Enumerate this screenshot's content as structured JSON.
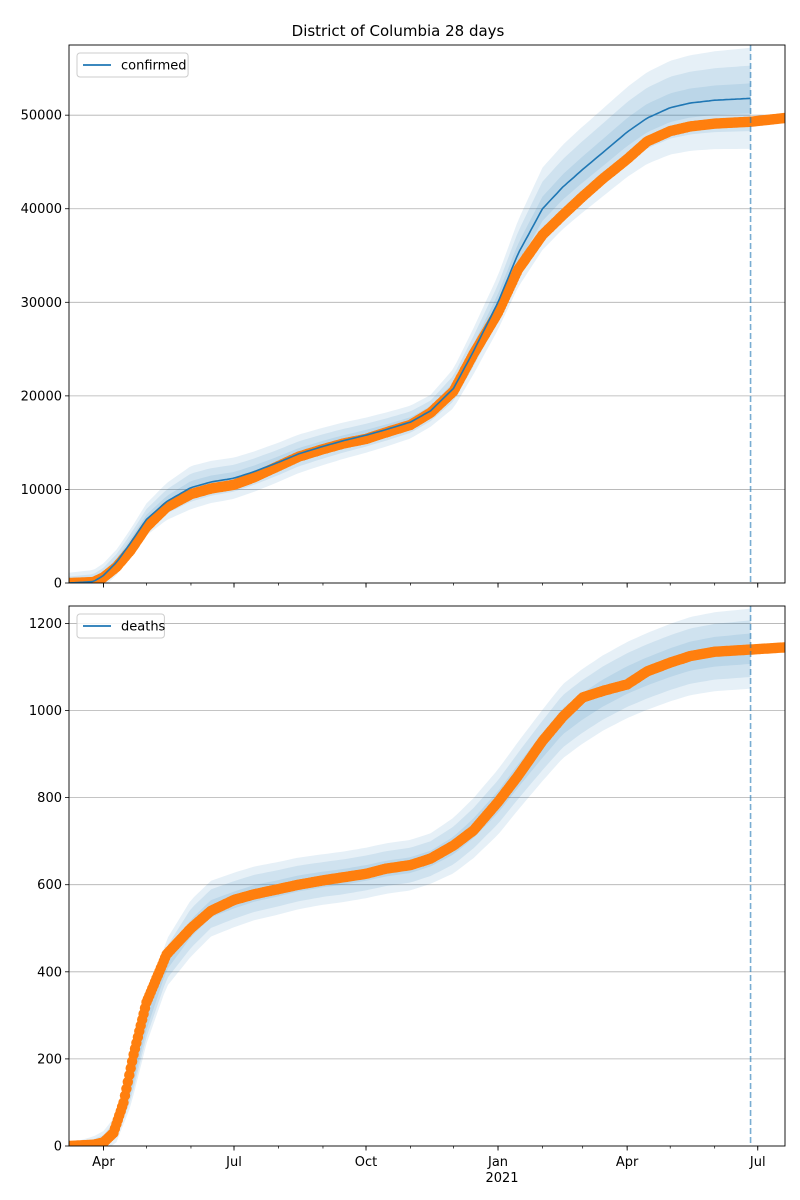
{
  "figure": {
    "title": "District of Columbia 28 days",
    "x_year_label": "2021"
  },
  "chart_data": [
    {
      "type": "line",
      "title": "District of Columbia 28 days",
      "xlabel": "",
      "ylabel": "",
      "x_axis": {
        "type": "date",
        "range": [
          "2020-03-08",
          "2021-07-20"
        ],
        "major_ticks": [
          {
            "date": "2020-04-01",
            "label": "Apr"
          },
          {
            "date": "2020-07-01",
            "label": "Jul"
          },
          {
            "date": "2020-10-01",
            "label": "Oct"
          },
          {
            "date": "2021-01-01",
            "label": "Jan"
          },
          {
            "date": "2021-04-01",
            "label": "Apr"
          },
          {
            "date": "2021-07-01",
            "label": "Jul"
          }
        ],
        "minor_ticks_monthly": true
      },
      "ylim": [
        0,
        57500
      ],
      "yticks": [
        0,
        10000,
        20000,
        30000,
        40000,
        50000
      ],
      "grid": "horizontal",
      "legend": {
        "position": "top-left",
        "entries": [
          "confirmed"
        ]
      },
      "forecast_date": "2021-06-26",
      "series": [
        {
          "name": "confirmed",
          "role": "model",
          "color": "#1f77b4",
          "points": [
            [
              "2020-03-08",
              0
            ],
            [
              "2020-03-25",
              150
            ],
            [
              "2020-04-01",
              800
            ],
            [
              "2020-04-10",
              2200
            ],
            [
              "2020-04-20",
              4300
            ],
            [
              "2020-05-01",
              6800
            ],
            [
              "2020-05-15",
              8700
            ],
            [
              "2020-06-01",
              10200
            ],
            [
              "2020-06-15",
              10800
            ],
            [
              "2020-07-01",
              11200
            ],
            [
              "2020-07-15",
              11900
            ],
            [
              "2020-08-01",
              12900
            ],
            [
              "2020-08-15",
              13800
            ],
            [
              "2020-09-01",
              14600
            ],
            [
              "2020-09-15",
              15200
            ],
            [
              "2020-10-01",
              15800
            ],
            [
              "2020-10-15",
              16400
            ],
            [
              "2020-11-01",
              17200
            ],
            [
              "2020-11-15",
              18400
            ],
            [
              "2020-12-01",
              20800
            ],
            [
              "2020-12-15",
              24800
            ],
            [
              "2021-01-01",
              30000
            ],
            [
              "2021-01-15",
              35200
            ],
            [
              "2021-02-01",
              40000
            ],
            [
              "2021-02-15",
              42300
            ],
            [
              "2021-03-01",
              44200
            ],
            [
              "2021-03-15",
              46000
            ],
            [
              "2021-04-01",
              48200
            ],
            [
              "2021-04-15",
              49700
            ],
            [
              "2021-05-01",
              50800
            ],
            [
              "2021-05-15",
              51300
            ],
            [
              "2021-06-01",
              51600
            ],
            [
              "2021-06-26",
              51800
            ]
          ],
          "band_half_widths": [
            [
              "2020-03-08",
              300,
              700,
              1100
            ],
            [
              "2020-04-15",
              400,
              900,
              1400
            ],
            [
              "2020-06-01",
              700,
              1500,
              2300
            ],
            [
              "2020-09-01",
              600,
              1300,
              2000
            ],
            [
              "2020-11-15",
              500,
              1100,
              1700
            ],
            [
              "2021-01-01",
              900,
              1900,
              2900
            ],
            [
              "2021-02-01",
              1300,
              2900,
              4400
            ],
            [
              "2021-04-01",
              1500,
              3200,
              4800
            ],
            [
              "2021-06-26",
              1600,
              3500,
              5400
            ]
          ]
        },
        {
          "name": "observed",
          "role": "observed",
          "color": "#ff7f0e",
          "points": [
            [
              "2020-03-08",
              0
            ],
            [
              "2020-03-25",
              100
            ],
            [
              "2020-04-01",
              600
            ],
            [
              "2020-04-10",
              1700
            ],
            [
              "2020-04-20",
              3500
            ],
            [
              "2020-05-01",
              6000
            ],
            [
              "2020-05-15",
              8100
            ],
            [
              "2020-06-01",
              9500
            ],
            [
              "2020-06-15",
              10100
            ],
            [
              "2020-07-01",
              10500
            ],
            [
              "2020-07-15",
              11300
            ],
            [
              "2020-08-01",
              12500
            ],
            [
              "2020-08-15",
              13500
            ],
            [
              "2020-09-01",
              14300
            ],
            [
              "2020-09-15",
              14900
            ],
            [
              "2020-10-01",
              15400
            ],
            [
              "2020-10-15",
              16100
            ],
            [
              "2020-11-01",
              16900
            ],
            [
              "2020-11-15",
              18200
            ],
            [
              "2020-12-01",
              20500
            ],
            [
              "2020-12-15",
              24500
            ],
            [
              "2021-01-01",
              28900
            ],
            [
              "2021-01-15",
              33500
            ],
            [
              "2021-02-01",
              37200
            ],
            [
              "2021-02-15",
              39300
            ],
            [
              "2021-03-01",
              41300
            ],
            [
              "2021-03-15",
              43200
            ],
            [
              "2021-04-01",
              45300
            ],
            [
              "2021-04-15",
              47200
            ],
            [
              "2021-05-01",
              48300
            ],
            [
              "2021-05-15",
              48800
            ],
            [
              "2021-06-01",
              49100
            ],
            [
              "2021-06-26",
              49300
            ],
            [
              "2021-07-20",
              49700
            ]
          ]
        }
      ]
    },
    {
      "type": "line",
      "title": "",
      "xlabel": "",
      "ylabel": "",
      "x_axis": {
        "type": "date",
        "range": [
          "2020-03-08",
          "2021-07-20"
        ],
        "major_ticks": [
          {
            "date": "2020-04-01",
            "label": "Apr"
          },
          {
            "date": "2020-07-01",
            "label": "Jul"
          },
          {
            "date": "2020-10-01",
            "label": "Oct"
          },
          {
            "date": "2021-01-01",
            "label": "Jan"
          },
          {
            "date": "2021-04-01",
            "label": "Apr"
          },
          {
            "date": "2021-07-01",
            "label": "Jul"
          }
        ],
        "minor_ticks_monthly": true
      },
      "ylim": [
        0,
        1240
      ],
      "yticks": [
        0,
        200,
        400,
        600,
        800,
        1000,
        1200
      ],
      "grid": "horizontal",
      "legend": {
        "position": "top-left",
        "entries": [
          "deaths"
        ]
      },
      "forecast_date": "2021-06-26",
      "series": [
        {
          "name": "deaths",
          "role": "model",
          "color": "#1f77b4",
          "points": [
            [
              "2020-03-08",
              0
            ],
            [
              "2020-03-25",
              3
            ],
            [
              "2020-04-01",
              10
            ],
            [
              "2020-04-10",
              40
            ],
            [
              "2020-04-20",
              130
            ],
            [
              "2020-05-01",
              280
            ],
            [
              "2020-05-15",
              420
            ],
            [
              "2020-06-01",
              500
            ],
            [
              "2020-06-15",
              545
            ],
            [
              "2020-07-01",
              565
            ],
            [
              "2020-07-15",
              580
            ],
            [
              "2020-08-01",
              592
            ],
            [
              "2020-08-15",
              603
            ],
            [
              "2020-09-01",
              612
            ],
            [
              "2020-09-15",
              618
            ],
            [
              "2020-10-01",
              627
            ],
            [
              "2020-10-15",
              637
            ],
            [
              "2020-11-01",
              645
            ],
            [
              "2020-11-15",
              660
            ],
            [
              "2020-12-01",
              690
            ],
            [
              "2020-12-15",
              730
            ],
            [
              "2021-01-01",
              790
            ],
            [
              "2021-01-15",
              850
            ],
            [
              "2021-02-01",
              920
            ],
            [
              "2021-02-15",
              975
            ],
            [
              "2021-03-01",
              1010
            ],
            [
              "2021-03-15",
              1040
            ],
            [
              "2021-04-01",
              1070
            ],
            [
              "2021-04-15",
              1090
            ],
            [
              "2021-05-01",
              1110
            ],
            [
              "2021-05-15",
              1125
            ],
            [
              "2021-06-01",
              1135
            ],
            [
              "2021-06-26",
              1142
            ]
          ],
          "band_half_widths": [
            [
              "2020-03-08",
              2,
              4,
              6
            ],
            [
              "2020-04-15",
              10,
              22,
              35
            ],
            [
              "2020-06-01",
              20,
              45,
              65
            ],
            [
              "2020-09-01",
              18,
              40,
              58
            ],
            [
              "2020-11-15",
              18,
              40,
              58
            ],
            [
              "2021-01-01",
              25,
              50,
              75
            ],
            [
              "2021-02-15",
              30,
              60,
              85
            ],
            [
              "2021-06-26",
              35,
              65,
              92
            ]
          ]
        },
        {
          "name": "observed",
          "role": "observed",
          "color": "#ff7f0e",
          "points": [
            [
              "2020-03-08",
              0
            ],
            [
              "2020-03-25",
              3
            ],
            [
              "2020-04-01",
              8
            ],
            [
              "2020-04-08",
              30
            ],
            [
              "2020-04-15",
              100
            ],
            [
              "2020-04-22",
              210
            ],
            [
              "2020-05-01",
              330
            ],
            [
              "2020-05-15",
              440
            ],
            [
              "2020-06-01",
              500
            ],
            [
              "2020-06-15",
              540
            ],
            [
              "2020-07-01",
              565
            ],
            [
              "2020-07-15",
              578
            ],
            [
              "2020-08-01",
              590
            ],
            [
              "2020-08-15",
              600
            ],
            [
              "2020-09-01",
              610
            ],
            [
              "2020-09-15",
              617
            ],
            [
              "2020-10-01",
              625
            ],
            [
              "2020-10-15",
              637
            ],
            [
              "2020-11-01",
              645
            ],
            [
              "2020-11-15",
              660
            ],
            [
              "2020-12-01",
              690
            ],
            [
              "2020-12-15",
              725
            ],
            [
              "2021-01-01",
              790
            ],
            [
              "2021-01-15",
              850
            ],
            [
              "2021-02-01",
              930
            ],
            [
              "2021-02-15",
              985
            ],
            [
              "2021-03-01",
              1030
            ],
            [
              "2021-03-15",
              1045
            ],
            [
              "2021-04-01",
              1060
            ],
            [
              "2021-04-15",
              1090
            ],
            [
              "2021-05-01",
              1110
            ],
            [
              "2021-05-15",
              1125
            ],
            [
              "2021-06-01",
              1135
            ],
            [
              "2021-06-26",
              1140
            ],
            [
              "2021-07-20",
              1145
            ]
          ]
        }
      ]
    }
  ]
}
